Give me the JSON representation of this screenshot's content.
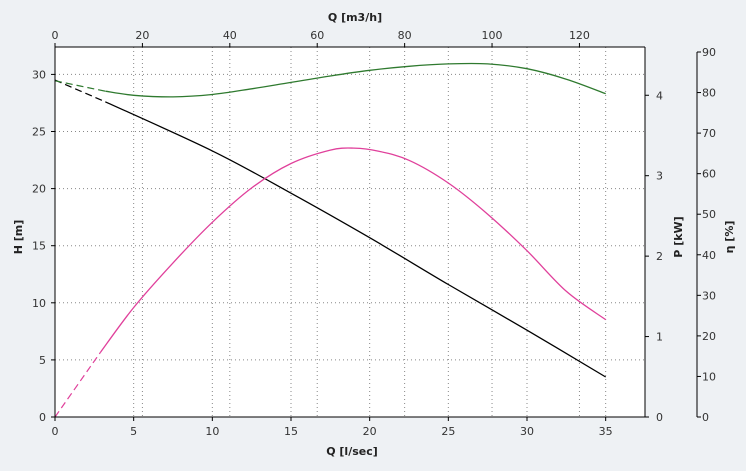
{
  "chart_data": {
    "type": "line",
    "title": "",
    "x_axis": {
      "label": "Q [l/sec]",
      "range": [
        0,
        37.5
      ],
      "ticks": [
        0,
        5,
        10,
        15,
        20,
        25,
        30,
        35
      ]
    },
    "x2_axis": {
      "label": "Q [m3/h]",
      "range": [
        0,
        135
      ],
      "ticks": [
        0,
        20,
        40,
        60,
        80,
        100,
        120
      ]
    },
    "y_left": {
      "label": "H [m]",
      "range": [
        0,
        32.4
      ],
      "ticks": [
        0,
        5,
        10,
        15,
        20,
        25,
        30
      ]
    },
    "y_mid": {
      "label": "P [kW]",
      "range": [
        0,
        4.6
      ],
      "ticks": [
        0,
        1,
        2,
        3,
        4
      ]
    },
    "y_right": {
      "label": "η [%]",
      "range": [
        0,
        90
      ],
      "ticks": [
        0,
        10,
        20,
        30,
        40,
        50,
        60,
        70,
        80,
        90
      ]
    },
    "grid": true,
    "series": [
      {
        "axis": "H",
        "color": "#000000",
        "dashed": [
          [
            0,
            29.5
          ],
          [
            3.2,
            27.6
          ]
        ],
        "solid": [
          [
            3.2,
            27.6
          ],
          [
            10,
            23.3
          ],
          [
            15,
            19.6
          ],
          [
            20,
            15.7
          ],
          [
            25,
            11.6
          ],
          [
            30,
            7.6
          ],
          [
            35,
            3.5
          ]
        ]
      },
      {
        "axis": "P",
        "color": "#2f7a2f",
        "dashed": [
          [
            0,
            4.18
          ],
          [
            3.2,
            4.05
          ]
        ],
        "solid": [
          [
            3.2,
            4.05
          ],
          [
            5,
            4.0
          ],
          [
            7.5,
            3.98
          ],
          [
            10,
            4.01
          ],
          [
            12.5,
            4.08
          ],
          [
            15,
            4.16
          ],
          [
            17.5,
            4.24
          ],
          [
            20,
            4.31
          ],
          [
            22.5,
            4.36
          ],
          [
            25,
            4.39
          ],
          [
            27.5,
            4.39
          ],
          [
            30,
            4.33
          ],
          [
            32.5,
            4.2
          ],
          [
            35,
            4.02
          ]
        ]
      },
      {
        "axis": "eta",
        "color": "#e0409b",
        "dashed": [
          [
            0,
            0
          ],
          [
            2.9,
            16
          ]
        ],
        "solid": [
          [
            2.9,
            16
          ],
          [
            5,
            27
          ],
          [
            7.5,
            38
          ],
          [
            10,
            48
          ],
          [
            12.5,
            56.5
          ],
          [
            15,
            62.5
          ],
          [
            17.5,
            65.8
          ],
          [
            19,
            66.3
          ],
          [
            20.5,
            65.6
          ],
          [
            22.5,
            63.3
          ],
          [
            25,
            57.7
          ],
          [
            27.5,
            50
          ],
          [
            30,
            41
          ],
          [
            32.5,
            31
          ],
          [
            35,
            24
          ]
        ]
      }
    ]
  }
}
